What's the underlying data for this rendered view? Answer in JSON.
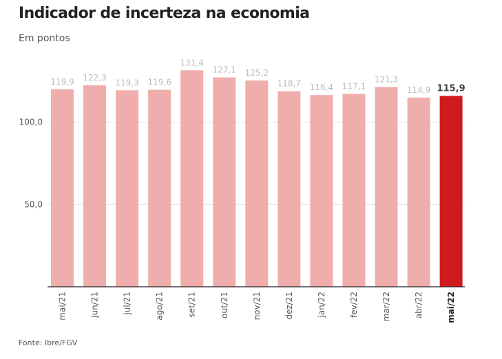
{
  "header": {
    "title": "Indicador de incerteza na economia",
    "subtitle": "Em pontos"
  },
  "footer": {
    "source": "Fonte: Ibre/FGV"
  },
  "colors": {
    "bar": "#efadab",
    "highlight_bar": "#cf1b1d",
    "value_label": "#bdbdbd",
    "highlight_label": "#444444",
    "axis_text": "#555555",
    "grid": "#e2e2e2",
    "baseline": "#222222"
  },
  "chart_data": {
    "type": "bar",
    "title": "Indicador de incerteza na economia",
    "subtitle": "Em pontos",
    "xlabel": "",
    "ylabel": "",
    "categories": [
      "mai/21",
      "jun/21",
      "jul/21",
      "ago/21",
      "set/21",
      "out/21",
      "nov/21",
      "dez/21",
      "jan/22",
      "fev/22",
      "mar/22",
      "abr/22",
      "mai/22"
    ],
    "values": [
      119.9,
      122.3,
      119.3,
      119.6,
      131.4,
      127.1,
      125.2,
      118.7,
      116.4,
      117.1,
      121.3,
      114.9,
      115.9
    ],
    "value_labels": [
      "119,9",
      "122,3",
      "119,3",
      "119,6",
      "131,4",
      "127,1",
      "125,2",
      "118,7",
      "116,4",
      "117,1",
      "121,3",
      "114,9",
      "115,9"
    ],
    "highlight_index": 12,
    "ylim": [
      0,
      150
    ],
    "y_ticks": [
      50,
      100
    ],
    "y_tick_labels": [
      "50,0",
      "100,0"
    ],
    "grid": true,
    "legend": "none"
  }
}
